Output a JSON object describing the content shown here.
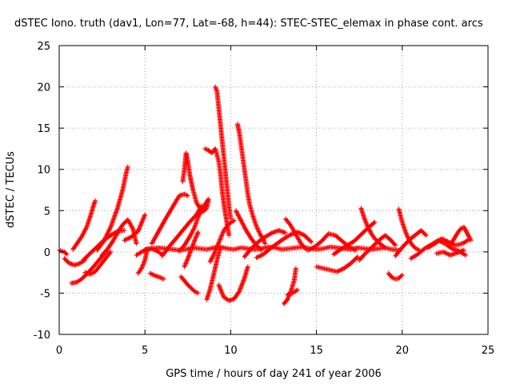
{
  "chart_data": {
    "type": "scatter",
    "title": "dSTEC Iono. truth (dav1, Lon=77, Lat=-68, h=44): STEC-STEC_elemax in phase cont. arcs",
    "xlabel": "GPS time / hours of day 241 of year 2006",
    "ylabel": "dSTEC  / TECUs",
    "xlim": [
      0,
      25
    ],
    "ylim": [
      -10,
      25
    ],
    "xticks": [
      0,
      5,
      10,
      15,
      20,
      25
    ],
    "yticks": [
      -10,
      -5,
      0,
      5,
      10,
      15,
      20,
      25
    ],
    "grid": true,
    "marker": "+",
    "series_color": "#ff0000",
    "arcs": [
      {
        "x": [
          0.0,
          0.15,
          0.3,
          0.45
        ],
        "y": [
          0.2,
          0.1,
          0.0,
          -0.3
        ]
      },
      {
        "x": [
          0.3,
          0.6,
          0.9,
          1.2,
          1.5
        ],
        "y": [
          -0.8,
          -1.4,
          -1.6,
          -1.4,
          -1.0
        ]
      },
      {
        "x": [
          0.8,
          1.0,
          1.3,
          1.6,
          1.8,
          2.0,
          2.1
        ],
        "y": [
          0.3,
          0.9,
          1.8,
          3.0,
          4.2,
          5.6,
          6.2
        ]
      },
      {
        "x": [
          0.7,
          1.0,
          1.3,
          1.6,
          2.0,
          2.4,
          2.8
        ],
        "y": [
          -3.8,
          -3.7,
          -3.3,
          -2.7,
          -1.8,
          -0.8,
          0.2
        ]
      },
      {
        "x": [
          1.5,
          1.8,
          2.1,
          2.4,
          2.7,
          3.0
        ],
        "y": [
          -2.5,
          -2.7,
          -2.4,
          -1.6,
          -0.8,
          0.0
        ]
      },
      {
        "x": [
          1.4,
          1.8,
          2.2,
          2.6,
          3.0,
          3.4,
          3.8
        ],
        "y": [
          -1.0,
          -0.2,
          0.6,
          1.4,
          2.0,
          2.5,
          2.6
        ]
      },
      {
        "x": [
          2.2,
          2.6,
          3.0,
          3.4,
          3.7,
          3.9,
          4.0
        ],
        "y": [
          0.2,
          1.3,
          3.0,
          5.3,
          7.5,
          9.5,
          10.3
        ]
      },
      {
        "x": [
          2.5,
          2.8,
          3.1,
          3.4,
          3.7,
          4.0,
          4.3,
          4.5
        ],
        "y": [
          -0.4,
          0.3,
          1.2,
          2.3,
          3.3,
          3.9,
          2.8,
          1.0
        ]
      },
      {
        "x": [
          3.8,
          4.2,
          4.6,
          5.0
        ],
        "y": [
          1.4,
          1.8,
          2.5,
          4.5
        ]
      },
      {
        "x": [
          4.5,
          4.8,
          5.1,
          5.4,
          5.7,
          6.0
        ],
        "y": [
          -0.4,
          0.0,
          0.3,
          0.4,
          0.1,
          -0.3
        ]
      },
      {
        "x": [
          4.6,
          4.8,
          5.0,
          5.1
        ],
        "y": [
          -2.6,
          -2.0,
          -1.0,
          0.0
        ]
      },
      {
        "x": [
          5.0,
          5.4,
          5.8,
          6.2,
          6.6,
          7.0,
          7.4,
          7.8,
          8.2,
          8.6,
          9.0,
          9.4,
          9.8,
          10.2,
          10.6,
          11.0,
          11.4,
          11.8,
          12.2,
          12.6,
          13.0,
          13.4,
          13.8,
          14.2,
          14.6,
          15.0,
          15.4,
          15.8,
          16.2,
          16.6,
          17.0,
          17.4,
          17.8,
          18.2,
          18.6,
          19.0,
          19.4,
          19.8
        ],
        "y": [
          0.3,
          0.4,
          0.5,
          0.4,
          0.3,
          0.2,
          0.3,
          0.5,
          0.4,
          0.3,
          0.5,
          0.6,
          0.4,
          0.3,
          0.5,
          0.4,
          0.3,
          0.4,
          0.6,
          0.5,
          0.3,
          0.4,
          0.5,
          0.6,
          0.4,
          0.3,
          0.4,
          0.6,
          0.5,
          0.4,
          0.3,
          0.5,
          0.4,
          0.3,
          0.4,
          0.5,
          0.3,
          0.2
        ]
      },
      {
        "x": [
          5.3,
          5.6,
          5.9,
          6.1
        ],
        "y": [
          -2.6,
          -2.9,
          -3.1,
          -3.3
        ]
      },
      {
        "x": [
          5.4,
          5.8,
          6.2,
          6.6,
          7.0,
          7.3,
          7.5
        ],
        "y": [
          1.0,
          2.5,
          4.0,
          5.4,
          6.8,
          7.0,
          6.8
        ]
      },
      {
        "x": [
          6.0,
          6.4,
          6.8,
          7.2,
          7.6,
          8.0,
          8.2,
          8.3
        ],
        "y": [
          -0.5,
          0.6,
          1.6,
          2.6,
          3.6,
          4.5,
          5.2,
          5.6
        ]
      },
      {
        "x": [
          7.2,
          7.3,
          7.4,
          7.5,
          7.6,
          7.7,
          7.8,
          7.9,
          8.0,
          8.2,
          8.4,
          8.6,
          8.7
        ],
        "y": [
          8.5,
          10.0,
          12.0,
          11.0,
          9.5,
          8.5,
          7.5,
          6.8,
          6.0,
          5.3,
          4.9,
          5.3,
          6.3
        ]
      },
      {
        "x": [
          7.0,
          7.3,
          7.6,
          7.9,
          8.1,
          8.4,
          8.7
        ],
        "y": [
          0.1,
          0.8,
          1.8,
          3.0,
          4.2,
          5.4,
          6.4
        ]
      },
      {
        "x": [
          7.3,
          7.5,
          7.7,
          7.9,
          8.1
        ],
        "y": [
          -1.8,
          -0.8,
          0.3,
          1.4,
          2.4
        ]
      },
      {
        "x": [
          7.1,
          7.3,
          7.5,
          7.7,
          7.9,
          8.1
        ],
        "y": [
          -3.0,
          -3.5,
          -4.0,
          -4.4,
          -4.8,
          -5.0
        ]
      },
      {
        "x": [
          8.5,
          8.7,
          8.9,
          9.1,
          9.3,
          9.4,
          9.5,
          9.6,
          9.7,
          9.8,
          9.9
        ],
        "y": [
          12.5,
          12.3,
          12.0,
          12.5,
          11.0,
          9.5,
          7.5,
          5.8,
          4.5,
          3.2,
          2.0
        ]
      },
      {
        "x": [
          9.1,
          9.2,
          9.3,
          9.4,
          9.5,
          9.6,
          9.7,
          9.8,
          9.9,
          10.0
        ],
        "y": [
          20.0,
          19.5,
          17.5,
          15.5,
          13.5,
          11.5,
          9.5,
          7.5,
          5.5,
          4.0
        ]
      },
      {
        "x": [
          9.3,
          9.6,
          9.9,
          10.2,
          10.5,
          10.8,
          11.0
        ],
        "y": [
          -4.0,
          -5.5,
          -5.9,
          -5.7,
          -4.8,
          -3.2,
          -1.8
        ]
      },
      {
        "x": [
          8.6,
          8.8,
          9.0,
          9.2,
          9.4
        ],
        "y": [
          -5.8,
          -4.5,
          -2.8,
          -1.0,
          0.5
        ]
      },
      {
        "x": [
          8.8,
          9.0,
          9.2,
          9.4,
          9.6,
          9.9,
          10.2
        ],
        "y": [
          -1.2,
          -0.4,
          0.6,
          1.6,
          2.6,
          3.4,
          3.8
        ]
      },
      {
        "x": [
          10.4,
          10.5,
          10.6,
          10.7,
          10.8,
          10.9,
          11.0,
          11.1,
          11.3,
          11.5,
          11.7,
          11.9,
          12.0
        ],
        "y": [
          15.5,
          14.5,
          13.0,
          11.5,
          10.0,
          8.5,
          7.0,
          5.8,
          4.3,
          3.1,
          2.2,
          1.5,
          1.0
        ]
      },
      {
        "x": [
          10.3,
          10.6,
          10.9,
          11.2,
          11.5,
          11.8
        ],
        "y": [
          5.0,
          3.8,
          2.6,
          1.6,
          0.8,
          0.2
        ]
      },
      {
        "x": [
          10.8,
          11.2,
          11.6,
          12.0,
          12.4,
          12.8,
          13.2
        ],
        "y": [
          -0.6,
          0.4,
          1.2,
          1.8,
          2.3,
          2.6,
          2.3
        ]
      },
      {
        "x": [
          11.5,
          11.9,
          12.3,
          12.7,
          13.1,
          13.5,
          13.9,
          14.3,
          14.7
        ],
        "y": [
          -0.7,
          -0.3,
          0.4,
          1.0,
          1.6,
          2.1,
          2.4,
          2.0,
          1.2
        ]
      },
      {
        "x": [
          13.1,
          13.3,
          13.5,
          13.7,
          13.8
        ],
        "y": [
          -6.3,
          -5.8,
          -4.8,
          -3.5,
          -2.0
        ]
      },
      {
        "x": [
          13.2,
          13.5,
          13.8,
          14.1,
          14.4
        ],
        "y": [
          4.0,
          3.2,
          2.1,
          1.0,
          0.3
        ]
      },
      {
        "x": [
          13.3,
          13.6,
          13.9
        ],
        "y": [
          -5.2,
          -5.0,
          -4.6
        ]
      },
      {
        "x": [
          14.5,
          14.9,
          15.3,
          15.7,
          16.1,
          16.5,
          16.9,
          17.3
        ],
        "y": [
          0.2,
          0.6,
          1.3,
          2.2,
          2.0,
          1.3,
          0.6,
          0.2
        ]
      },
      {
        "x": [
          15.0,
          15.4,
          15.8,
          16.2,
          16.6,
          17.0,
          17.4
        ],
        "y": [
          -1.8,
          -2.0,
          -2.2,
          -2.4,
          -2.0,
          -1.4,
          -0.6
        ]
      },
      {
        "x": [
          16.0,
          16.4,
          16.8,
          17.2,
          17.6,
          18.0,
          18.4
        ],
        "y": [
          -0.3,
          0.3,
          0.8,
          1.3,
          2.1,
          2.9,
          3.6
        ]
      },
      {
        "x": [
          17.6,
          17.8,
          18.0,
          18.2,
          18.4,
          18.7,
          19.0
        ],
        "y": [
          5.3,
          4.0,
          3.0,
          2.2,
          1.6,
          1.0,
          0.5
        ]
      },
      {
        "x": [
          17.5,
          17.8,
          18.1,
          18.4,
          18.7,
          19.0,
          19.3,
          19.6
        ],
        "y": [
          -1.0,
          -0.3,
          0.3,
          0.9,
          1.5,
          2.0,
          1.5,
          0.8
        ]
      },
      {
        "x": [
          19.2,
          19.4,
          19.6,
          19.8,
          20.0
        ],
        "y": [
          -2.6,
          -3.1,
          -3.3,
          -3.2,
          -2.8
        ]
      },
      {
        "x": [
          19.8,
          20.0,
          20.2,
          20.4,
          20.6,
          20.8,
          21.0
        ],
        "y": [
          5.2,
          3.6,
          2.4,
          1.4,
          0.8,
          0.4,
          0.2
        ]
      },
      {
        "x": [
          19.6,
          19.9,
          20.2,
          20.5,
          20.8,
          21.1,
          21.4
        ],
        "y": [
          -0.5,
          0.3,
          1.0,
          1.6,
          2.1,
          2.6,
          2.0
        ]
      },
      {
        "x": [
          20.5,
          20.9,
          21.3,
          21.7,
          22.1,
          22.5,
          22.9,
          23.3,
          23.7
        ],
        "y": [
          -0.8,
          -0.3,
          0.4,
          0.9,
          1.4,
          1.0,
          0.4,
          0.1,
          -0.4
        ]
      },
      {
        "x": [
          21.5,
          21.9,
          22.3,
          22.7,
          23.1,
          23.5,
          23.9
        ],
        "y": [
          0.5,
          1.0,
          1.6,
          1.2,
          0.8,
          1.0,
          1.5
        ]
      },
      {
        "x": [
          22.8,
          23.0,
          23.2,
          23.4,
          23.6,
          23.8,
          24.0
        ],
        "y": [
          0.8,
          1.5,
          2.2,
          2.8,
          3.0,
          2.2,
          1.4
        ]
      },
      {
        "x": [
          22.0,
          22.4,
          22.8,
          23.2,
          23.6
        ],
        "y": [
          -0.2,
          0.0,
          -0.4,
          -0.1,
          0.2
        ]
      }
    ]
  }
}
